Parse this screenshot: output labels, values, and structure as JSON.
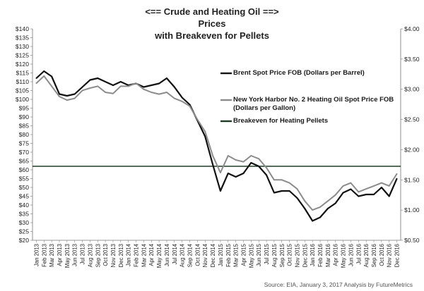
{
  "chart_data": {
    "type": "line",
    "title": [
      "<== Crude and Heating Oil ==>",
      "Prices",
      "with Breakeven for Pellets"
    ],
    "y_left": {
      "min": 20,
      "max": 140,
      "step": 5,
      "prefix": "$"
    },
    "y_right": {
      "min": 0.5,
      "max": 4.0,
      "step": 0.5,
      "prefix": "$",
      "decimals": 2
    },
    "x_labels": [
      "Jan 2013",
      "Feb 2013",
      "Mar 2013",
      "Apr 2013",
      "May 2013",
      "Jun 2013",
      "Jul 2013",
      "Aug 2013",
      "Sep 2013",
      "Oct 2013",
      "Nov 2013",
      "Dec 2013",
      "Jan 2014",
      "Feb 2014",
      "Mar 2014",
      "Apr 2014",
      "May 2014",
      "Jun 2014",
      "Jul 2014",
      "Aug 2014",
      "Sep 2014",
      "Oct 2014",
      "Nov 2014",
      "Dec 2014",
      "Jan 2015",
      "Feb 2015",
      "Mar 2015",
      "Apr 2015",
      "May 2015",
      "Jun 2015",
      "Jul 2015",
      "Aug 2015",
      "Sep 2015",
      "Oct 2015",
      "Nov 2015",
      "Dec 2015",
      "Jan 2016",
      "Feb 2016",
      "Mar 2016",
      "Apr 2016",
      "May 2016",
      "Jun 2016",
      "Jul 2016",
      "Aug 2016",
      "Sep 2016",
      "Oct 2016",
      "Nov 2016",
      "Dec 2016"
    ],
    "series": [
      {
        "name": "Brent Spot Price FOB (Dollars per Barrel)",
        "color": "#111111",
        "axis": "left",
        "values": [
          112,
          116,
          113,
          103,
          102,
          103,
          107,
          111,
          112,
          110,
          108,
          110,
          108,
          109,
          107,
          108,
          109,
          112,
          107,
          101,
          97,
          88,
          79,
          63,
          48,
          58,
          56,
          58,
          64,
          62,
          57,
          47,
          48,
          48,
          44,
          38,
          31,
          33,
          38,
          41,
          47,
          49,
          45,
          46,
          46,
          50,
          45,
          55
        ]
      },
      {
        "name": "New York Harbor No. 2 Heating Oil Spot Price FOB (Dollars per Gallon)",
        "color": "#8c8c8c",
        "axis": "right",
        "values": [
          3.1,
          3.22,
          3.05,
          2.88,
          2.82,
          2.85,
          2.98,
          3.02,
          3.05,
          2.95,
          2.93,
          3.05,
          3.05,
          3.1,
          3.0,
          2.95,
          2.92,
          2.95,
          2.85,
          2.8,
          2.72,
          2.5,
          2.3,
          1.9,
          1.62,
          1.9,
          1.83,
          1.8,
          1.9,
          1.85,
          1.7,
          1.5,
          1.5,
          1.45,
          1.35,
          1.15,
          1.0,
          1.05,
          1.15,
          1.25,
          1.4,
          1.45,
          1.3,
          1.35,
          1.4,
          1.45,
          1.4,
          1.6
        ]
      }
    ],
    "breakeven": {
      "name": "Breakeven for Heating Pellets",
      "value": 62,
      "color": "#1e3a24"
    },
    "source": "Source: EIA, January 3, 2017 Analysis by FutureMetrics"
  }
}
